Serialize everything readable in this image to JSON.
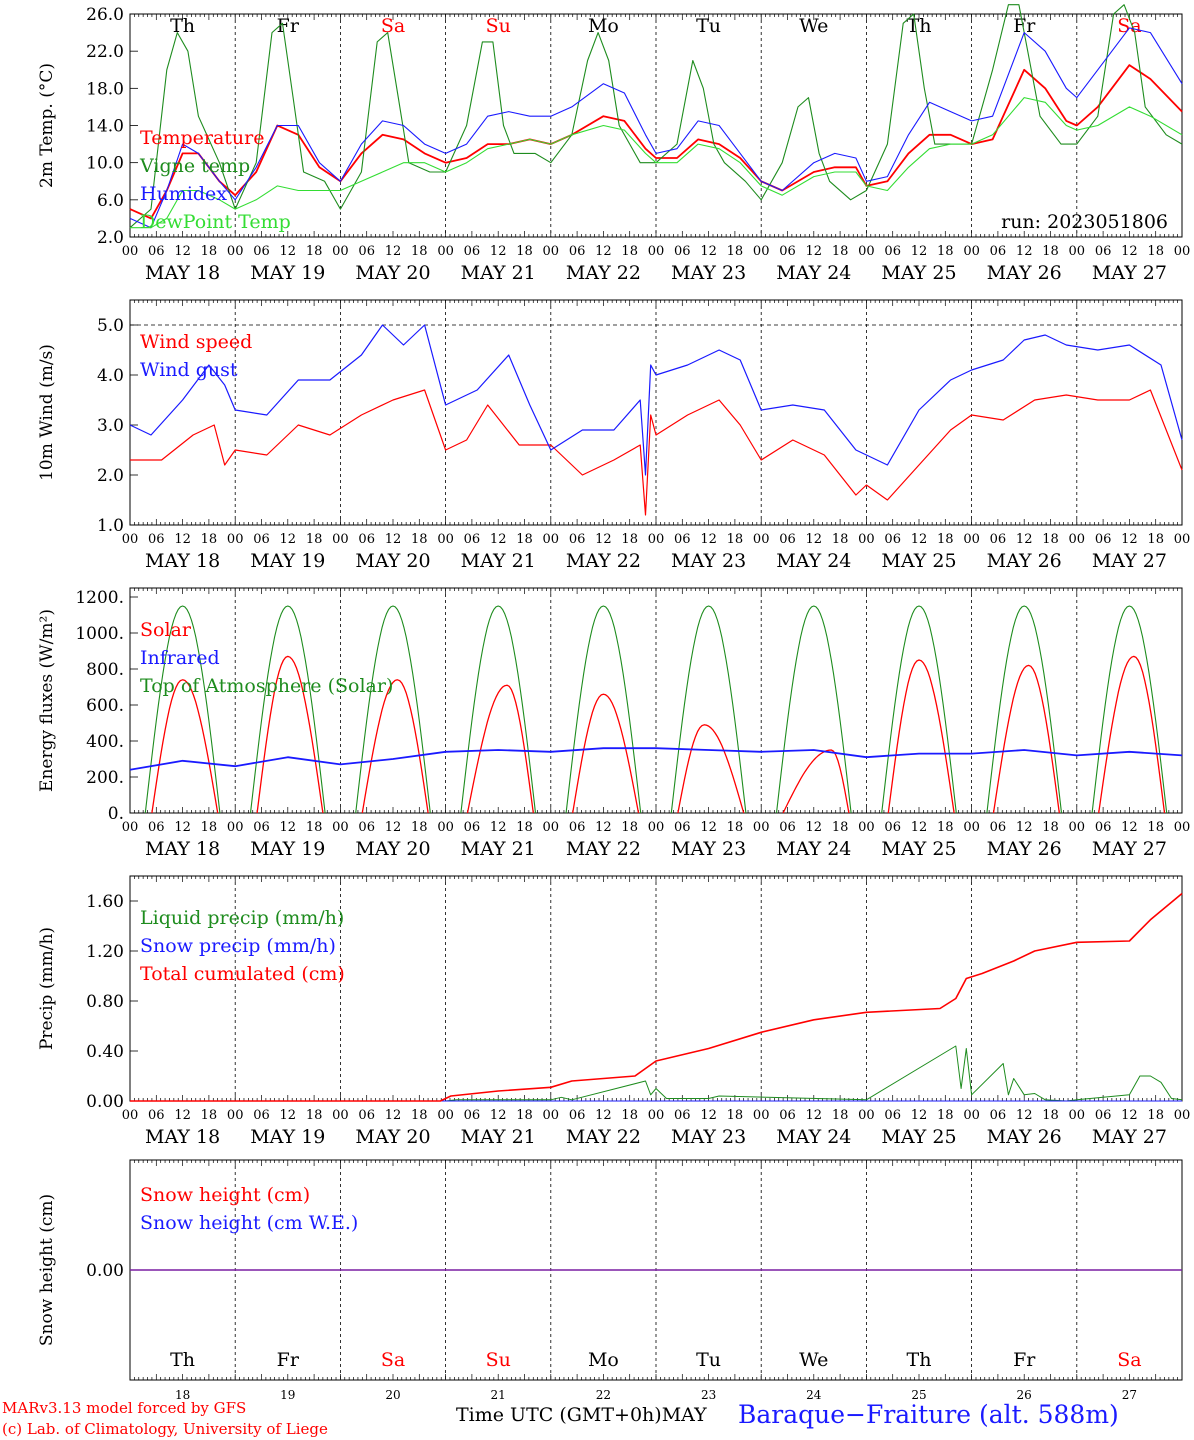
{
  "run_label": "run: 2023051806",
  "weekdays": [
    {
      "label": "Th",
      "weekend": false
    },
    {
      "label": "Fr",
      "weekend": false
    },
    {
      "label": "Sa",
      "weekend": true
    },
    {
      "label": "Su",
      "weekend": true
    },
    {
      "label": "Mo",
      "weekend": false
    },
    {
      "label": "Tu",
      "weekend": false
    },
    {
      "label": "We",
      "weekend": false
    },
    {
      "label": "Th",
      "weekend": false
    },
    {
      "label": "Fr",
      "weekend": false
    },
    {
      "label": "Sa",
      "weekend": true
    }
  ],
  "date_labels": [
    "MAY 18",
    "MAY 19",
    "MAY 20",
    "MAY 21",
    "MAY 22",
    "MAY 23",
    "MAY 24",
    "MAY 25",
    "MAY 26",
    "MAY 27"
  ],
  "day_numbers": [
    "18",
    "19",
    "20",
    "21",
    "22",
    "23",
    "24",
    "25",
    "26",
    "27"
  ],
  "hour_ticks": [
    "00",
    "06",
    "12",
    "18"
  ],
  "final_hour_tick": "00",
  "month_label": "MAY",
  "footer": {
    "model_line": "MARv3.13 model forced by GFS",
    "lab_line": "(c) Lab. of Climatology, University of Liege",
    "time_label": "Time UTC (GMT+0h)",
    "station": "Baraque−Fraiture (alt. 588m)"
  },
  "colors": {
    "red": "#ff0000",
    "green": "#1e8c1e",
    "blue": "#1a1aff",
    "lightgreen": "#33dd33",
    "purple": "#7a1fa2",
    "weekend": "#ff0000"
  },
  "chart_data": [
    {
      "type": "line",
      "ylabel": "2m Temp. (°C)",
      "ylim": [
        2,
        26
      ],
      "yticks": [
        "2.0",
        "6.0",
        "10.0",
        "14.0",
        "18.0",
        "22.0",
        "26.0"
      ],
      "xlim_days": [
        0,
        10
      ],
      "series": [
        {
          "name": "Temperature",
          "color": "red",
          "x": [
            0,
            0.2,
            0.35,
            0.5,
            0.65,
            0.85,
            1.0,
            1.2,
            1.4,
            1.6,
            1.8,
            2.0,
            2.2,
            2.4,
            2.6,
            2.8,
            3.0,
            3.2,
            3.4,
            3.6,
            3.8,
            4.0,
            4.2,
            4.5,
            4.7,
            4.9,
            5.0,
            5.2,
            5.4,
            5.6,
            5.8,
            6.0,
            6.2,
            6.5,
            6.7,
            6.9,
            7.0,
            7.2,
            7.4,
            7.6,
            7.8,
            8.0,
            8.2,
            8.5,
            8.7,
            8.9,
            9.0,
            9.2,
            9.5,
            9.7,
            10.0
          ],
          "y": [
            5,
            4,
            7,
            11,
            11,
            8,
            6.5,
            9,
            14,
            13,
            9.5,
            8,
            11,
            13,
            12.5,
            11,
            10,
            10.5,
            12,
            12,
            12.5,
            12,
            13,
            15,
            14.5,
            11.5,
            10.5,
            10.5,
            12.5,
            12,
            10.5,
            8,
            7,
            9,
            9.5,
            9.5,
            7.5,
            8,
            11,
            13,
            13,
            12,
            12.5,
            20,
            18,
            14.5,
            14,
            16,
            20.5,
            19,
            15.5
          ]
        },
        {
          "name": "Vigne temp",
          "color": "green",
          "x": [
            0,
            0.2,
            0.35,
            0.45,
            0.55,
            0.65,
            0.85,
            1.0,
            1.2,
            1.35,
            1.45,
            1.55,
            1.65,
            1.85,
            2.0,
            2.2,
            2.35,
            2.45,
            2.55,
            2.65,
            2.85,
            3.0,
            3.2,
            3.35,
            3.45,
            3.55,
            3.65,
            3.85,
            4.0,
            4.2,
            4.35,
            4.45,
            4.55,
            4.65,
            4.85,
            5.0,
            5.2,
            5.35,
            5.45,
            5.55,
            5.65,
            5.85,
            6.0,
            6.2,
            6.35,
            6.45,
            6.55,
            6.65,
            6.85,
            7.0,
            7.2,
            7.35,
            7.45,
            7.55,
            7.65,
            7.85,
            8.0,
            8.2,
            8.35,
            8.45,
            8.55,
            8.65,
            8.85,
            9.0,
            9.2,
            9.35,
            9.45,
            9.55,
            9.65,
            9.85,
            10.0
          ],
          "y": [
            3,
            5,
            20,
            24,
            22,
            15,
            10,
            5,
            10,
            24,
            25,
            17,
            9,
            8,
            5,
            9,
            23,
            24,
            17,
            10,
            9,
            9,
            14,
            23,
            23,
            14,
            11,
            11,
            10,
            13,
            21,
            24,
            21,
            14,
            10,
            10,
            12,
            21,
            18,
            12,
            10,
            8,
            6,
            10,
            16,
            17,
            11,
            8,
            6,
            7,
            12,
            25,
            26,
            18,
            12,
            12,
            12,
            20,
            27,
            27,
            21,
            15,
            12,
            12,
            15,
            26,
            27,
            24,
            16,
            13,
            12
          ]
        },
        {
          "name": "Humidex",
          "color": "blue",
          "x": [
            0,
            0.2,
            0.35,
            0.5,
            0.65,
            0.85,
            1.0,
            1.2,
            1.4,
            1.6,
            1.8,
            2.0,
            2.2,
            2.4,
            2.6,
            2.8,
            3.0,
            3.2,
            3.4,
            3.6,
            3.8,
            4.0,
            4.2,
            4.5,
            4.7,
            4.9,
            5.0,
            5.2,
            5.4,
            5.6,
            5.8,
            6.0,
            6.2,
            6.5,
            6.7,
            6.9,
            7.0,
            7.2,
            7.4,
            7.6,
            7.8,
            8.0,
            8.2,
            8.5,
            8.7,
            8.9,
            9.0,
            9.2,
            9.5,
            9.7,
            10.0
          ],
          "y": [
            4,
            3,
            7,
            12,
            11,
            8,
            6,
            9.5,
            14,
            14,
            10,
            8,
            12,
            14.5,
            14,
            12,
            11,
            12,
            15,
            15.5,
            15,
            15,
            16,
            18.5,
            17.5,
            13,
            11,
            11.5,
            14.5,
            14,
            11,
            8,
            7,
            10,
            11,
            10.5,
            8,
            8.5,
            13,
            16.5,
            15.5,
            14.5,
            15,
            24,
            22,
            18,
            17,
            20,
            24.5,
            24,
            18.5
          ]
        },
        {
          "name": "DewPoint Temp",
          "color": "lightgreen",
          "x": [
            0,
            0.2,
            0.35,
            0.5,
            0.65,
            0.85,
            1.0,
            1.2,
            1.4,
            1.6,
            1.8,
            2.0,
            2.2,
            2.4,
            2.6,
            2.8,
            3.0,
            3.2,
            3.4,
            3.6,
            3.8,
            4.0,
            4.2,
            4.5,
            4.7,
            4.9,
            5.0,
            5.2,
            5.4,
            5.6,
            5.8,
            6.0,
            6.2,
            6.5,
            6.7,
            6.9,
            7.0,
            7.2,
            7.4,
            7.6,
            7.8,
            8.0,
            8.2,
            8.5,
            8.7,
            8.9,
            9.0,
            9.2,
            9.5,
            9.7,
            10.0
          ],
          "y": [
            3,
            3,
            4,
            7,
            7,
            6,
            5,
            6,
            7.5,
            7,
            7,
            7,
            8,
            9,
            10,
            10,
            9,
            10,
            11.5,
            12,
            12.5,
            12,
            13,
            14,
            13.5,
            11,
            10,
            10,
            12,
            11.5,
            10,
            7.5,
            6.5,
            8.5,
            9,
            9,
            7.5,
            7,
            9.5,
            11.5,
            12,
            12,
            13,
            17,
            16.5,
            14,
            13.5,
            14,
            16,
            15,
            13
          ]
        }
      ]
    },
    {
      "type": "line",
      "ylabel": "10m Wind (m/s)",
      "ylim": [
        1,
        5.5
      ],
      "yticks": [
        "1.0",
        "2.0",
        "3.0",
        "4.0",
        "5.0"
      ],
      "xlim_days": [
        0,
        10
      ],
      "series": [
        {
          "name": "Wind speed",
          "color": "red",
          "x": [
            0,
            0.3,
            0.6,
            0.8,
            0.9,
            1.0,
            1.3,
            1.6,
            1.9,
            2.2,
            2.5,
            2.8,
            3.0,
            3.2,
            3.4,
            3.7,
            4.0,
            4.3,
            4.6,
            4.85,
            4.9,
            4.95,
            5.0,
            5.3,
            5.6,
            5.8,
            6.0,
            6.3,
            6.6,
            6.9,
            7.0,
            7.2,
            7.5,
            7.8,
            8.0,
            8.3,
            8.6,
            8.9,
            9.2,
            9.5,
            9.7,
            10.0
          ],
          "y": [
            2.3,
            2.3,
            2.8,
            3.0,
            2.2,
            2.5,
            2.4,
            3.0,
            2.8,
            3.2,
            3.5,
            3.7,
            2.5,
            2.7,
            3.4,
            2.6,
            2.6,
            2.0,
            2.3,
            2.6,
            1.2,
            3.2,
            2.8,
            3.2,
            3.5,
            3.0,
            2.3,
            2.7,
            2.4,
            1.6,
            1.8,
            1.5,
            2.2,
            2.9,
            3.2,
            3.1,
            3.5,
            3.6,
            3.5,
            3.5,
            3.7,
            2.1
          ]
        },
        {
          "name": "Wind gust",
          "color": "blue",
          "x": [
            0,
            0.2,
            0.5,
            0.75,
            0.9,
            1.0,
            1.3,
            1.6,
            1.9,
            2.2,
            2.4,
            2.6,
            2.8,
            3.0,
            3.3,
            3.6,
            3.8,
            4.0,
            4.3,
            4.6,
            4.85,
            4.9,
            4.95,
            5.0,
            5.3,
            5.6,
            5.8,
            6.0,
            6.3,
            6.6,
            6.9,
            7.0,
            7.2,
            7.5,
            7.8,
            8.0,
            8.3,
            8.5,
            8.7,
            8.9,
            9.2,
            9.5,
            9.8,
            10.0
          ],
          "y": [
            3.0,
            2.8,
            3.5,
            4.2,
            3.8,
            3.3,
            3.2,
            3.9,
            3.9,
            4.4,
            5.0,
            4.6,
            5.0,
            3.4,
            3.7,
            4.4,
            3.4,
            2.5,
            2.9,
            2.9,
            3.5,
            2.0,
            4.2,
            4.0,
            4.2,
            4.5,
            4.3,
            3.3,
            3.4,
            3.3,
            2.5,
            2.4,
            2.2,
            3.3,
            3.9,
            4.1,
            4.3,
            4.7,
            4.8,
            4.6,
            4.5,
            4.6,
            4.2,
            2.7
          ]
        }
      ]
    },
    {
      "type": "line",
      "ylabel": "Energy fluxes (W/m²)",
      "ylim": [
        0,
        1250
      ],
      "yticks": [
        "0.",
        "200.",
        "400.",
        "600.",
        "800.",
        "1000.",
        "1200."
      ],
      "xlim_days": [
        0,
        10
      ],
      "series": [
        {
          "name": "Solar",
          "color": "red",
          "peaks": [
            740,
            870,
            740,
            710,
            660,
            490,
            350,
            850,
            820,
            870
          ],
          "peak_hours": [
            12,
            12,
            13,
            14,
            12,
            11,
            16,
            12,
            13,
            13
          ]
        },
        {
          "name": "Infrared",
          "color": "blue",
          "x": [
            0,
            0.5,
            1.0,
            1.5,
            2.0,
            2.5,
            3.0,
            3.5,
            4.0,
            4.5,
            5.0,
            5.5,
            6.0,
            6.5,
            7.0,
            7.5,
            8.0,
            8.5,
            9.0,
            9.5,
            10.0
          ],
          "y": [
            240,
            290,
            260,
            310,
            270,
            300,
            340,
            350,
            340,
            360,
            360,
            350,
            340,
            350,
            310,
            330,
            330,
            350,
            320,
            340,
            320
          ]
        },
        {
          "name": "Top of Atmosphere (Solar)",
          "color": "green",
          "peak": 1150,
          "sunrise_hour": 3.5,
          "sunset_hour": 20.5
        }
      ]
    },
    {
      "type": "line",
      "ylabel": "Precip (mm/h)",
      "ylim": [
        0,
        1.8
      ],
      "yticks": [
        "0.00",
        "0.40",
        "0.80",
        "1.20",
        "1.60"
      ],
      "xlim_days": [
        0,
        10
      ],
      "series": [
        {
          "name": "Liquid precip (mm/h)",
          "color": "green",
          "x": [
            0,
            3.0,
            3.1,
            4.0,
            4.1,
            4.2,
            4.9,
            4.95,
            5.0,
            5.1,
            5.5,
            5.6,
            7.0,
            7.85,
            7.9,
            7.95,
            8.0,
            8.3,
            8.35,
            8.4,
            8.5,
            8.6,
            8.7,
            8.9,
            9.0,
            9.5,
            9.6,
            9.7,
            9.8,
            9.9,
            10.0
          ],
          "y": [
            0,
            0,
            0.01,
            0.01,
            0.03,
            0.01,
            0.16,
            0.05,
            0.1,
            0.02,
            0.02,
            0.04,
            0.01,
            0.44,
            0.1,
            0.42,
            0.05,
            0.3,
            0.05,
            0.18,
            0.05,
            0.06,
            0.01,
            0,
            0.01,
            0.05,
            0.2,
            0.2,
            0.15,
            0.02,
            0.01
          ]
        },
        {
          "name": "Snow precip (mm/h)",
          "color": "blue",
          "x": [
            0,
            10
          ],
          "y": [
            0,
            0
          ]
        },
        {
          "name": "Total cumulated (cm)",
          "color": "red",
          "x": [
            0,
            2.95,
            3.05,
            3.5,
            4.0,
            4.2,
            4.8,
            4.9,
            5.0,
            5.5,
            6.0,
            6.5,
            7.0,
            7.7,
            7.85,
            7.95,
            8.1,
            8.4,
            8.6,
            9.0,
            9.5,
            9.7,
            10.0
          ],
          "y": [
            0,
            0,
            0.04,
            0.08,
            0.11,
            0.16,
            0.2,
            0.26,
            0.32,
            0.42,
            0.55,
            0.65,
            0.71,
            0.74,
            0.82,
            0.98,
            1.02,
            1.12,
            1.2,
            1.27,
            1.28,
            1.45,
            1.66
          ]
        }
      ]
    },
    {
      "type": "line",
      "ylabel": "Snow height (cm)",
      "yticks": [
        "0.00"
      ],
      "xlim_days": [
        0,
        10
      ],
      "series": [
        {
          "name": "Snow height (cm)",
          "color": "red",
          "x": [
            0,
            10
          ],
          "y": [
            0,
            0
          ]
        },
        {
          "name": "Snow height (cm W.E.)",
          "color": "blue",
          "x": [
            0,
            10
          ],
          "y": [
            0,
            0
          ]
        }
      ]
    }
  ]
}
